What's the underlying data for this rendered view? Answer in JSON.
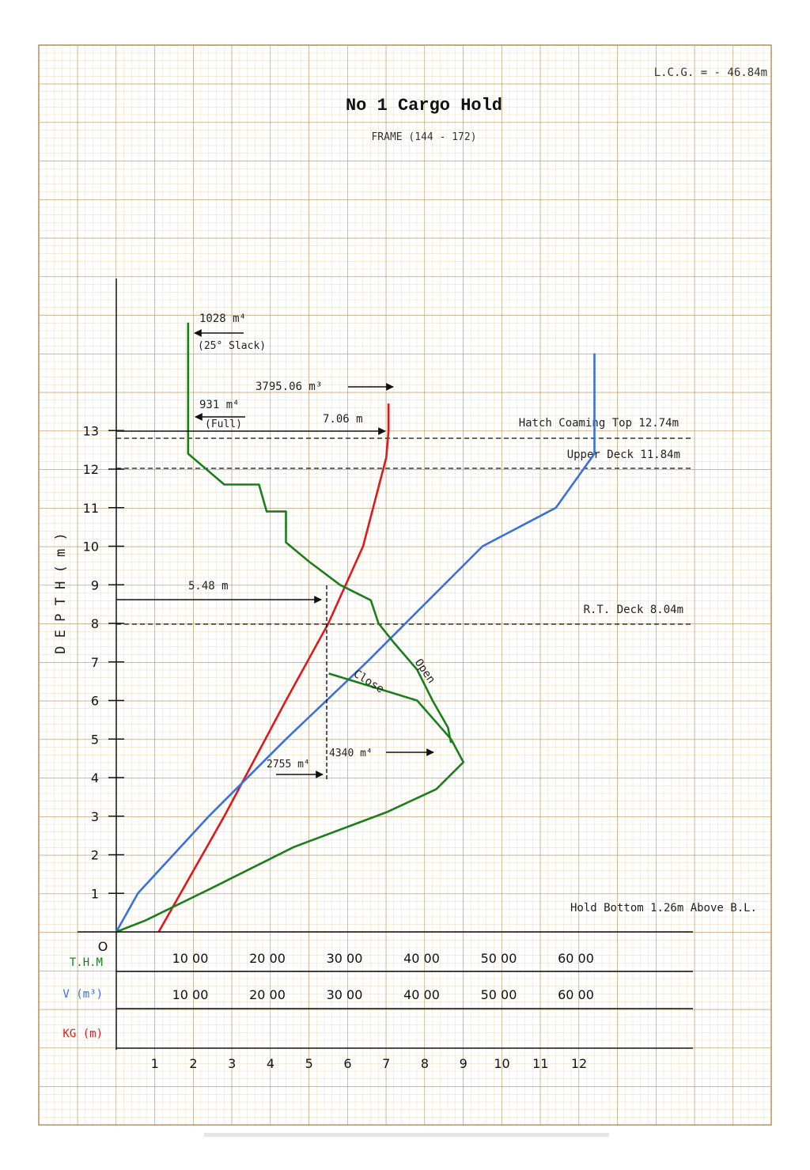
{
  "header": {
    "lcg": "L.C.G. = - 46.84m",
    "title": "No 1 Cargo Hold",
    "subtitle": "FRAME (144 - 172)"
  },
  "colors": {
    "grid_minor": "#e2cfa8",
    "grid_major": "#b8935a",
    "thm": "#1a7f1a",
    "volume": "#3a6fe0",
    "kg": "#e01818",
    "ink": "#111111"
  },
  "annotations": {
    "slack_value": "1028 m⁴",
    "slack_note": "(25° Slack)",
    "volume_value": "3795.06 m³",
    "full_value": "931 m⁴",
    "full_note": "(Full)",
    "kg_top_value": "7.06 m",
    "hatch_coaming": "Hatch Coaming Top 12.74m",
    "upper_deck": "Upper Deck 11.84m",
    "rt_deck": "R.T. Deck 8.04m",
    "kg_mid_value": "5.48 m",
    "close_label": "Close",
    "open_label": "Open",
    "max_thm_value": "4340 m⁴",
    "thm_mid_value": "2755 m⁴",
    "hold_bottom": "Hold Bottom 1.26m Above B.L."
  },
  "axis": {
    "ylabel": "D E P T H ( m )",
    "origin": "O",
    "row_labels": {
      "thm": "T.H.M",
      "volume": "V (m³)",
      "kg": "KG (m)"
    }
  },
  "chart_data": {
    "type": "line",
    "title": "No 1 Cargo Hold",
    "subtitle": "FRAME (144 - 172)",
    "ylabel": "D E P T H ( m )",
    "ylim": [
      0,
      13
    ],
    "y_ticks": [
      "1",
      "2",
      "3",
      "4",
      "5",
      "6",
      "7",
      "8",
      "9",
      "10",
      "11",
      "12",
      "13"
    ],
    "x_scales": {
      "thm": {
        "label": "T.H.M",
        "ticks": [
          "10 00",
          "20 00",
          "30 00",
          "40 00",
          "50 00",
          "60 00"
        ],
        "range": [
          0,
          7500
        ]
      },
      "volume": {
        "label": "V (m³)",
        "ticks": [
          "10 00",
          "20 00",
          "30 00",
          "40 00",
          "50 00",
          "60 00"
        ],
        "range": [
          0,
          7500
        ]
      },
      "kg": {
        "label": "KG (m)",
        "ticks": [
          "1",
          "2",
          "3",
          "4",
          "5",
          "6",
          "7",
          "8",
          "9",
          "10",
          "11",
          "12"
        ],
        "range": [
          0,
          15
        ]
      }
    },
    "reference_lines": [
      {
        "label": "Hatch Coaming Top 12.74m",
        "depth": 12.74
      },
      {
        "label": "Upper Deck 11.84m",
        "depth": 11.84
      },
      {
        "label": "R.T. Deck 8.04m",
        "depth": 8.04
      }
    ],
    "series": [
      {
        "key": "kg",
        "color": "#e01818",
        "points": [
          [
            1.1,
            0
          ],
          [
            2.8,
            3
          ],
          [
            4.4,
            6
          ],
          [
            5.5,
            8
          ],
          [
            6.4,
            10
          ],
          [
            7.0,
            12.3
          ],
          [
            7.06,
            13
          ],
          [
            7.06,
            13.7
          ]
        ]
      },
      {
        "key": "volume",
        "color": "#3a6fe0",
        "points": [
          [
            0,
            0
          ],
          [
            280,
            1
          ],
          [
            1200,
            3
          ],
          [
            2200,
            5
          ],
          [
            3250,
            7
          ],
          [
            3750,
            8
          ],
          [
            4750,
            10
          ],
          [
            5700,
            11
          ],
          [
            6200,
            12.4
          ],
          [
            6200,
            13
          ],
          [
            6200,
            15
          ]
        ]
      },
      {
        "key": "thm_open",
        "color": "#1a7f1a",
        "points": [
          [
            931,
            15.8
          ],
          [
            931,
            12.4
          ],
          [
            1400,
            11.6
          ],
          [
            1850,
            11.6
          ],
          [
            1950,
            10.9
          ],
          [
            2200,
            10.9
          ],
          [
            2200,
            10.1
          ],
          [
            2500,
            9.6
          ],
          [
            2900,
            9.0
          ],
          [
            3300,
            8.6
          ],
          [
            3400,
            8.0
          ],
          [
            3600,
            7.5
          ],
          [
            3900,
            6.8
          ],
          [
            4100,
            6.0
          ],
          [
            4300,
            5.3
          ],
          [
            4340,
            4.9
          ]
        ]
      },
      {
        "key": "thm_close",
        "color": "#1a7f1a",
        "points": [
          [
            2755,
            6.7
          ],
          [
            3900,
            6.0
          ],
          [
            4340,
            5.0
          ],
          [
            4500,
            4.4
          ],
          [
            4150,
            3.7
          ],
          [
            3500,
            3.1
          ],
          [
            2300,
            2.2
          ],
          [
            1200,
            1.1
          ],
          [
            380,
            0.3
          ],
          [
            0,
            0
          ]
        ]
      }
    ]
  }
}
